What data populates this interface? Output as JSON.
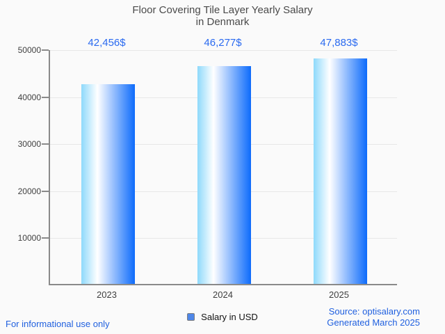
{
  "title": {
    "line1": "Floor Covering Tile Layer Yearly Salary",
    "line2": "in Denmark"
  },
  "chart_data": {
    "type": "bar",
    "title": "Floor Covering Tile Layer Yearly Salary in Denmark",
    "categories": [
      "2023",
      "2024",
      "2025"
    ],
    "series": [
      {
        "name": "Salary in USD",
        "values": [
          42456,
          46277,
          47883
        ],
        "labels": [
          "42,456$",
          "46,277$",
          "47,883$"
        ]
      }
    ],
    "ylim": [
      0,
      50000
    ],
    "yticks": [
      10000,
      20000,
      30000,
      40000,
      50000
    ],
    "grid": true,
    "legend_position": "bottom"
  },
  "legend": {
    "label": "Salary in USD"
  },
  "footer": {
    "disclaimer": "For informational use only",
    "source": "Source: optisalary.com",
    "generated": "Generated March 2025"
  },
  "colors": {
    "background": "#fafafa",
    "title_text": "#4a4a4a",
    "axis": "#8a8a8a",
    "grid": "#e7e7e7",
    "tick_label": "#3f3f3f",
    "value_label": "#2a6af0",
    "footer_text": "#2060df",
    "bar_gradient_start": "#8ed9fb",
    "bar_gradient_mid": "#ffffff",
    "bar_gradient_end": "#0d6bfb",
    "legend_marker_fill": "#4f87e8",
    "legend_marker_border": "#7d7d7d",
    "legend_text": "#111111"
  }
}
